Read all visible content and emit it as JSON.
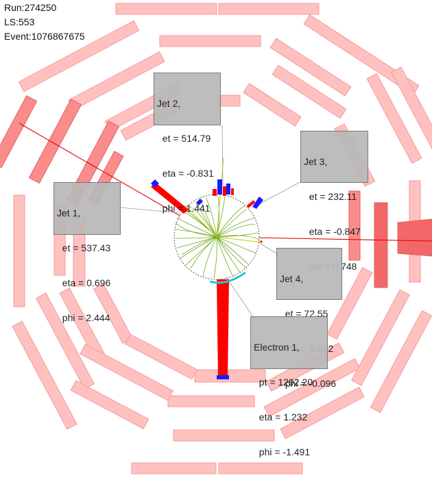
{
  "event_info": {
    "run": "Run:274250",
    "ls": "LS:553",
    "event": "Event:1076867675"
  },
  "labels": [
    {
      "id": "jet-2",
      "lines": [
        "Jet 2,",
        "  et = 514.79",
        "  eta = -0.831",
        "  phi = 1.441"
      ]
    },
    {
      "id": "jet-3",
      "lines": [
        "Jet 3,",
        "  et = 232.11",
        "  eta = -0.847",
        "  phi = 0.748"
      ]
    },
    {
      "id": "jet-1",
      "lines": [
        "Jet 1,",
        "  et = 537.43",
        "  eta = 0.696",
        "  phi = 2.444"
      ]
    },
    {
      "id": "jet-4",
      "lines": [
        "Jet 4,",
        "  et = 72.55",
        "  eta = 0.962",
        "  phi = -0.096"
      ]
    },
    {
      "id": "electron-1",
      "lines": [
        "Electron 1,",
        "  pt = 1292.20",
        "  eta = 1.232",
        "  phi = -1.491"
      ]
    }
  ],
  "colors": {
    "muon_chamber": "#ffc0c0",
    "muon_chamber_hit": "#fa8c8c",
    "track": "#6aa81c",
    "tracker_circle": "#555555",
    "energy_deposit": "#ff0000",
    "hcal_deposit": "#1a1aff",
    "electron_arc": "#25c8d2",
    "label_bg": "#b9b9b9"
  }
}
